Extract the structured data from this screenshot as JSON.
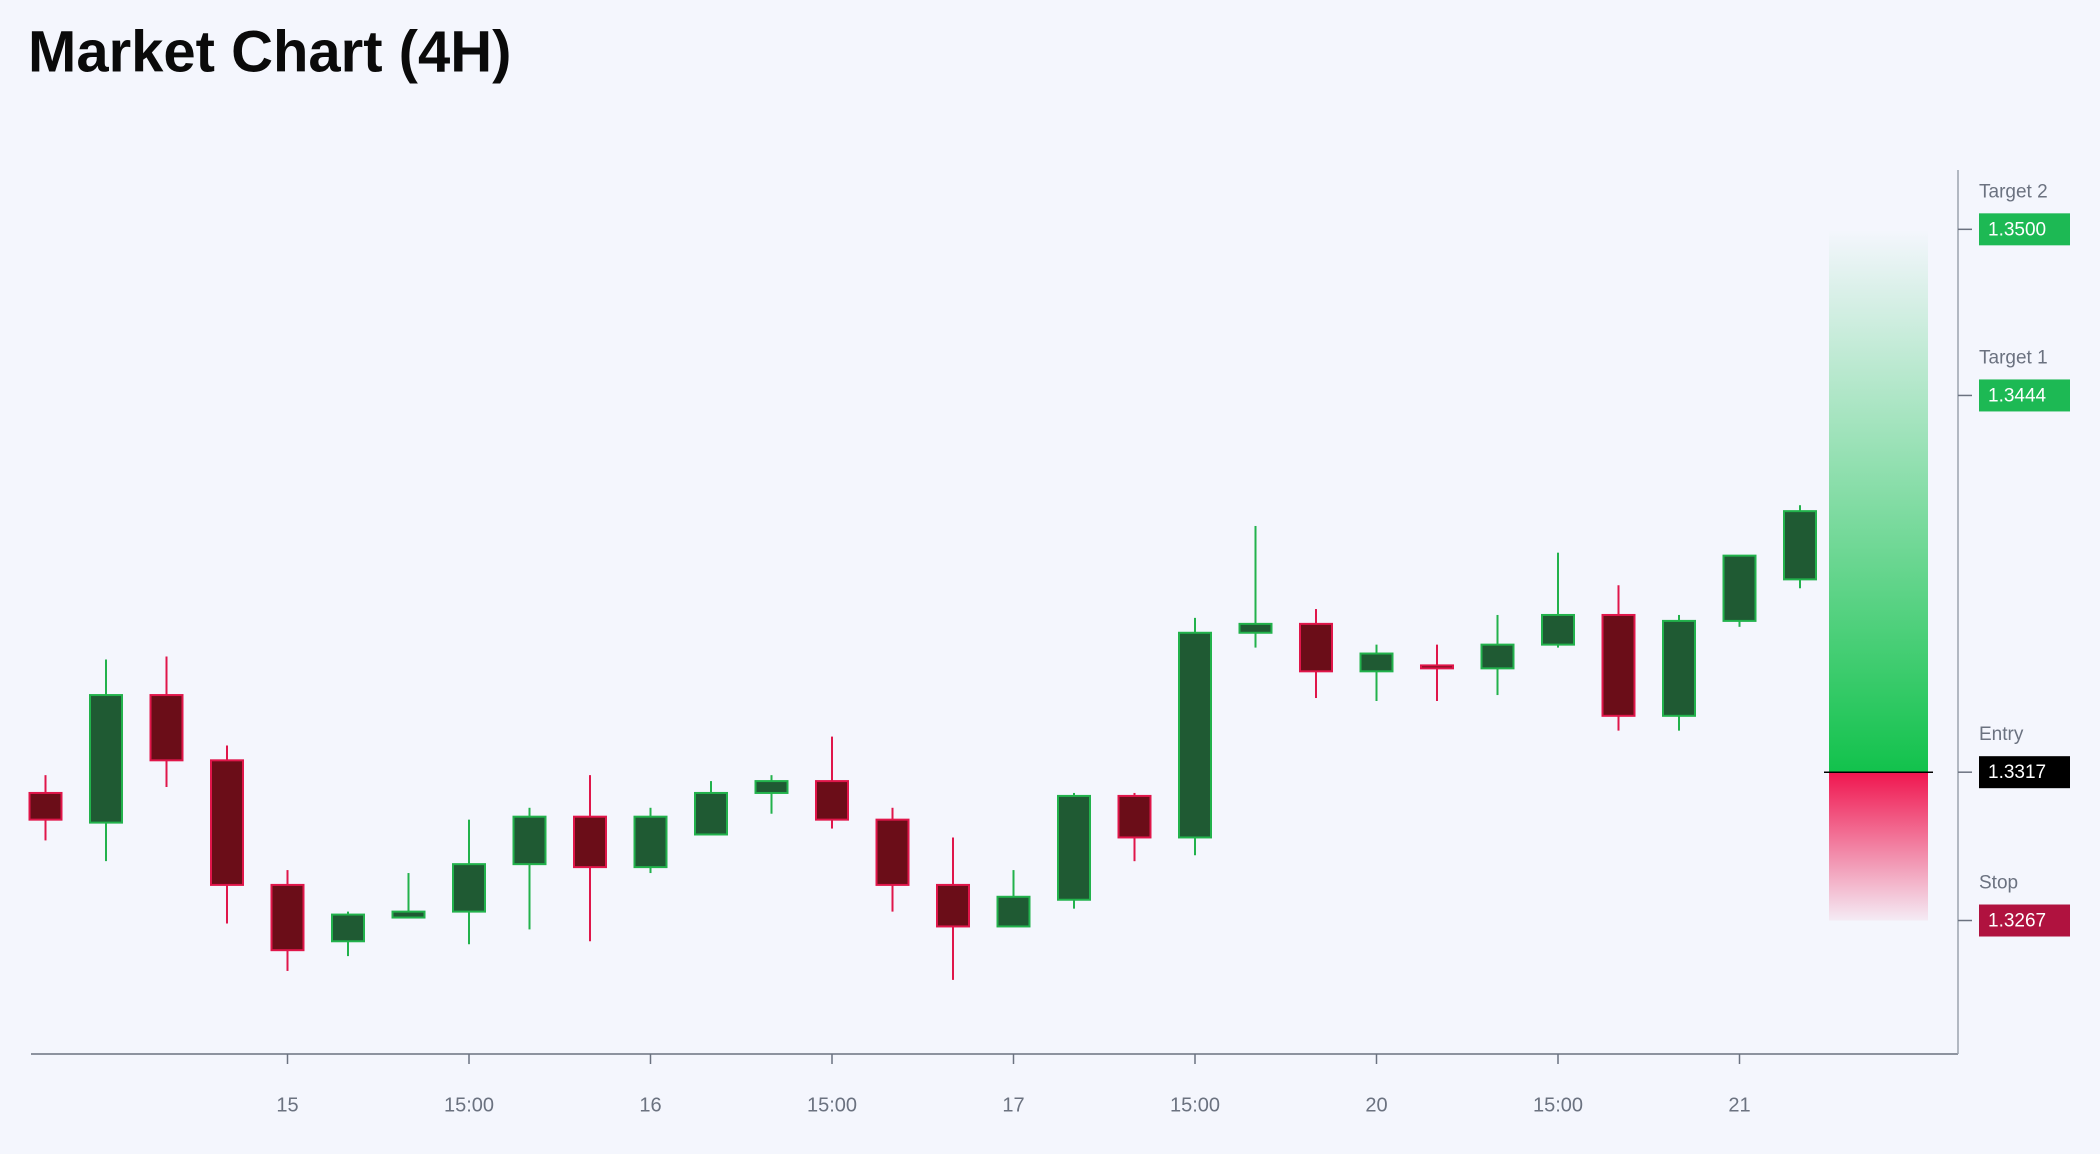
{
  "chart_data": {
    "type": "candlestick",
    "title": "Market Chart (4H)",
    "categories": [
      null,
      null,
      null,
      null,
      "15",
      null,
      null,
      "15:00",
      null,
      null,
      "16",
      null,
      null,
      "15:00",
      null,
      null,
      "17",
      null,
      null,
      "15:00",
      null,
      null,
      "20",
      null,
      null,
      "15:00",
      null,
      null,
      "21",
      null
    ],
    "open": [
      1.331,
      1.33,
      1.3343,
      1.3321,
      1.3279,
      1.326,
      1.3268,
      1.327,
      1.3286,
      1.3302,
      1.3285,
      1.3296,
      1.331,
      1.3314,
      1.3301,
      1.3279,
      1.3265,
      1.3274,
      1.3309,
      1.3295,
      1.3364,
      1.3367,
      1.3351,
      1.3353,
      1.3352,
      1.336,
      1.337,
      1.3336,
      1.3368,
      1.3382
    ],
    "high": [
      1.3316,
      1.3355,
      1.3356,
      1.3326,
      1.3284,
      1.327,
      1.3283,
      1.3301,
      1.3305,
      1.3316,
      1.3305,
      1.3314,
      1.3316,
      1.3329,
      1.3305,
      1.3295,
      1.3284,
      1.331,
      1.331,
      1.3369,
      1.34,
      1.3372,
      1.336,
      1.336,
      1.337,
      1.3391,
      1.338,
      1.337,
      1.339,
      1.3407
    ],
    "low": [
      1.3294,
      1.3287,
      1.3312,
      1.3266,
      1.325,
      1.3255,
      1.3268,
      1.3259,
      1.3264,
      1.326,
      1.3283,
      1.3296,
      1.3303,
      1.3298,
      1.327,
      1.3247,
      1.3265,
      1.3271,
      1.3287,
      1.3289,
      1.3359,
      1.3342,
      1.3341,
      1.3341,
      1.3343,
      1.3359,
      1.3331,
      1.3331,
      1.3366,
      1.3379
    ],
    "close": [
      1.3301,
      1.3343,
      1.3321,
      1.3279,
      1.3257,
      1.3269,
      1.327,
      1.3286,
      1.3302,
      1.3285,
      1.3302,
      1.331,
      1.3314,
      1.3301,
      1.3279,
      1.3265,
      1.3275,
      1.3309,
      1.3295,
      1.3364,
      1.3367,
      1.3351,
      1.3357,
      1.3352,
      1.336,
      1.337,
      1.3336,
      1.3368,
      1.339,
      1.3405
    ],
    "up_color": "#22b24c",
    "up_fill": "#1f5a33",
    "down_color": "#e0164a",
    "down_fill": "#6b0d18",
    "ylim": [
      1.3222,
      1.352
    ],
    "levels": [
      {
        "name": "Target 2",
        "value": 1.35,
        "value_label": "1.3500",
        "color": "#1db954"
      },
      {
        "name": "Target 1",
        "value": 1.3444,
        "color": "#1db954"
      },
      {
        "name": "Entry",
        "value": 1.3317,
        "color": "#000000"
      },
      {
        "name": "Stop",
        "value": 1.3267,
        "color": "#b0123f"
      }
    ]
  }
}
